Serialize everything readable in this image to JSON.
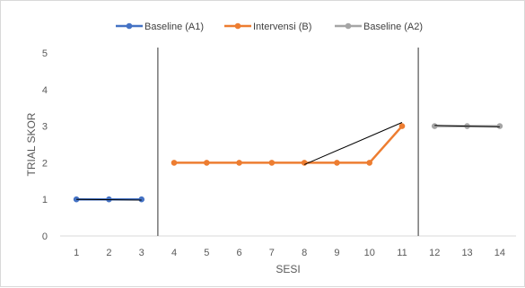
{
  "chart_data": {
    "type": "line",
    "title": "",
    "xlabel": "SESI",
    "ylabel": "TRIAL SKOR",
    "categories": [
      "1",
      "2",
      "3",
      "4",
      "5",
      "6",
      "7",
      "8",
      "9",
      "10",
      "11",
      "12",
      "13",
      "14"
    ],
    "ylim": [
      0,
      5
    ],
    "yticks": [
      0,
      1,
      2,
      3,
      4,
      5
    ],
    "grid": false,
    "legend_position": "top",
    "series": [
      {
        "name": "Baseline (A1)",
        "color": "#4472C4",
        "x": [
          1,
          2,
          3
        ],
        "values": [
          1,
          1,
          1
        ]
      },
      {
        "name": "Intervensi (B)",
        "color": "#ED7D31",
        "x": [
          4,
          5,
          6,
          7,
          8,
          9,
          10,
          11
        ],
        "values": [
          2,
          2,
          2,
          2,
          2,
          2,
          2,
          3
        ]
      },
      {
        "name": "Baseline (A2)",
        "color": "#A5A5A5",
        "x": [
          12,
          13,
          14
        ],
        "values": [
          3,
          3,
          3
        ]
      }
    ],
    "phase_dividers": [
      3.5,
      11.5
    ],
    "trend_lines": [
      {
        "from": [
          1,
          1
        ],
        "to": [
          3,
          0.98
        ]
      },
      {
        "from": [
          8,
          1.95
        ],
        "to": [
          11,
          3.1
        ]
      },
      {
        "from": [
          12,
          3.02
        ],
        "to": [
          14,
          2.98
        ]
      }
    ]
  }
}
